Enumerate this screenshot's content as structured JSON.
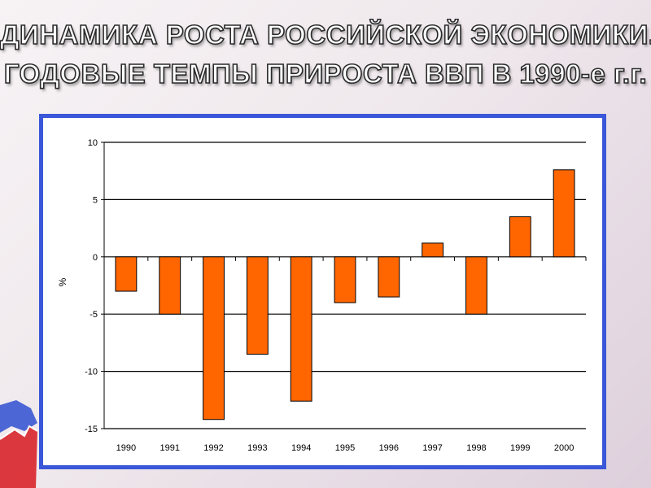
{
  "slide": {
    "title_line1": "ДИНАМИКА РОСТА РОССИЙСКОЙ ЭКОНОМИКИ.",
    "title_line2": "ГОДОВЫЕ ТЕМПЫ ПРИРОСТА ВВП В 1990-е г.г."
  },
  "colors": {
    "bar_fill": "#ff6600",
    "bar_stroke": "#000000",
    "frame_border": "#3a57d9",
    "map_red": "#d8232a",
    "map_blue": "#2f4fd0"
  },
  "chart_data": {
    "type": "bar",
    "categories": [
      "1990",
      "1991",
      "1992",
      "1993",
      "1994",
      "1995",
      "1996",
      "1997",
      "1998",
      "1999",
      "2000"
    ],
    "values": [
      -3.0,
      -5.0,
      -14.2,
      -8.5,
      -12.6,
      -4.0,
      -3.5,
      1.2,
      -5.0,
      3.5,
      7.6
    ],
    "title": "",
    "xlabel": "",
    "ylabel": "%",
    "ylim": [
      -15,
      10
    ],
    "yticks": [
      10,
      5,
      0,
      -5,
      -10,
      -15
    ],
    "grid": true,
    "legend": "none"
  }
}
